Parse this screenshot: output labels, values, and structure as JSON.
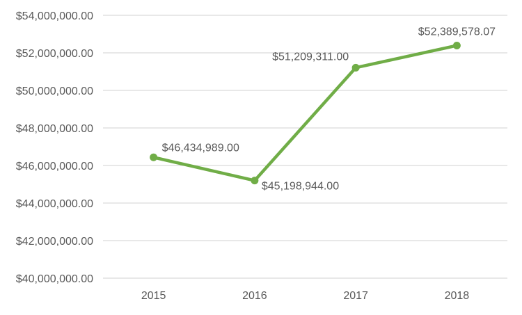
{
  "chart_data": {
    "type": "line",
    "title": "",
    "xlabel": "",
    "ylabel": "",
    "categories": [
      "2015",
      "2016",
      "2017",
      "2018"
    ],
    "series": [
      {
        "values": [
          46434989.0,
          45198944.0,
          51209311.0,
          52389578.07
        ],
        "data_labels": [
          "$46,434,989.00",
          "$45,198,944.00",
          "$51,209,311.00",
          "$52,389,578.07"
        ],
        "color": "#70ad47"
      }
    ],
    "ylim": [
      40000000,
      54000000
    ],
    "yticks": [
      40000000,
      42000000,
      44000000,
      46000000,
      48000000,
      50000000,
      52000000,
      54000000
    ],
    "ytick_labels": [
      "$40,000,000.00",
      "$42,000,000.00",
      "$44,000,000.00",
      "$46,000,000.00",
      "$48,000,000.00",
      "$50,000,000.00",
      "$52,000,000.00",
      "$54,000,000.00"
    ],
    "grid": true,
    "gridline_color": "#d9d9d9",
    "legend": "none"
  }
}
